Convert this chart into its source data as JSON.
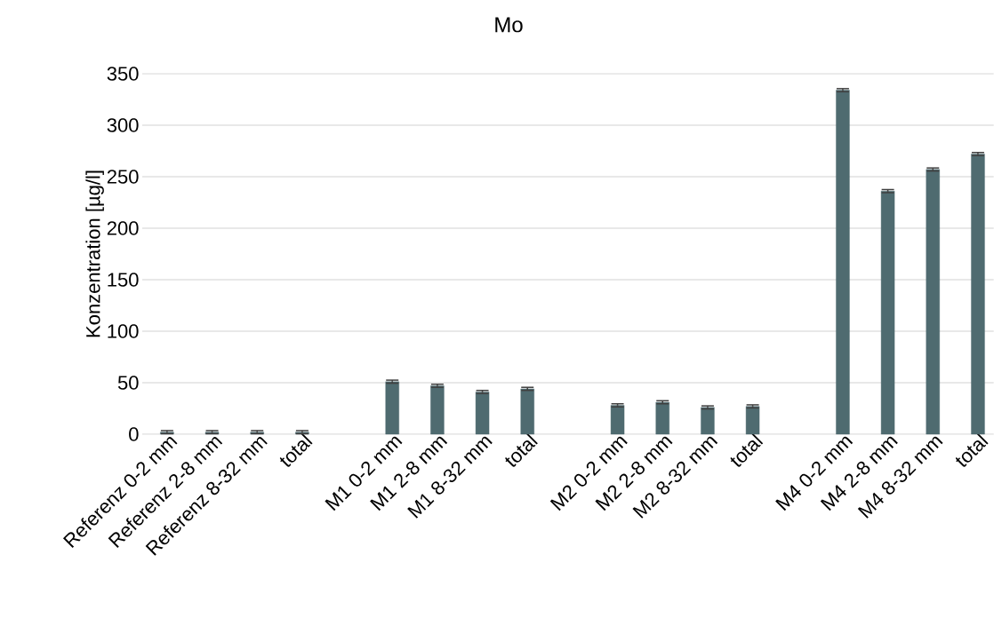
{
  "chart_data": {
    "type": "bar",
    "title": "Mo",
    "ylabel": "Konzentration [µg/l]",
    "categories": [
      "Referenz 0-2 mm",
      "Referenz 2-8 mm",
      "Referenz 8-32 mm",
      "total",
      null,
      "M1 0-2 mm",
      "M1 2-8 mm",
      "M1 8-32 mm",
      "total",
      null,
      "M2 0-2 mm",
      "M2 2-8 mm",
      "M2 8-32 mm",
      "total",
      null,
      "M4 0-2 mm",
      "M4 2-8 mm",
      "M4 8-32 mm",
      "total"
    ],
    "values": [
      2,
      2,
      2,
      2,
      null,
      51,
      47,
      41,
      44,
      null,
      28,
      31,
      26,
      27,
      null,
      334,
      236,
      257,
      272
    ],
    "errors": [
      1.5,
      1.5,
      1.5,
      1.5,
      null,
      1.5,
      1.5,
      1.5,
      1.5,
      null,
      1.5,
      1.5,
      1.5,
      1.5,
      null,
      1.5,
      1.5,
      1.5,
      1.5
    ],
    "color": "#4f6b70",
    "ylim": [
      0,
      350
    ],
    "yticks": [
      0,
      50,
      100,
      150,
      200,
      250,
      300,
      350
    ],
    "grid": "y"
  }
}
